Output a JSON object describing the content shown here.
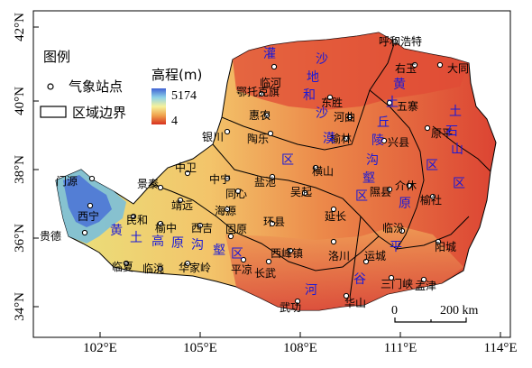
{
  "frame": {
    "x_ticks": [
      "102°E",
      "105°E",
      "108°E",
      "111°E",
      "114°E"
    ],
    "y_ticks": [
      "42°N",
      "40°N",
      "38°N",
      "36°N",
      "34°N"
    ]
  },
  "legend": {
    "title": "图例",
    "station_label": "气象站点",
    "boundary_label": "区域边界",
    "elevation_title": "高程(m)",
    "elevation_max": "5174",
    "elevation_min": "4",
    "colors": [
      "#4a6fd6",
      "#f7f39a",
      "#f1a84f",
      "#d7301f"
    ]
  },
  "scale_bar": {
    "zero": "0",
    "label": "200 km"
  },
  "stations": [
    "呼和浩特",
    "右玉",
    "大同",
    "临河",
    "东胜",
    "五寨",
    "鄂托克旗",
    "惠农",
    "河曲",
    "原平",
    "银川",
    "陶乐",
    "榆林",
    "兴县",
    "中卫",
    "盐池",
    "横山",
    "门源",
    "景泰",
    "中宁",
    "同心",
    "吴起",
    "隰县",
    "介休",
    "榆社",
    "西宁",
    "民和",
    "靖远",
    "海源",
    "延长",
    "贵德",
    "榆中",
    "西吉",
    "固原",
    "环县",
    "临汾",
    "临夏",
    "临洮",
    "华家岭",
    "平凉",
    "西峰镇",
    "洛川",
    "运城",
    "阳城",
    "长武",
    "三门峡",
    "孟津",
    "华山",
    "武功"
  ],
  "regions": [
    {
      "name": "灌沙地和沙漠区",
      "chars": [
        "灌",
        "沙",
        "地",
        "和",
        "沙",
        "漠",
        "区"
      ]
    },
    {
      "name": "黄土丘陵沟壑区",
      "chars": [
        "黄",
        "土",
        "丘",
        "陵",
        "沟",
        "壑",
        "区"
      ]
    },
    {
      "name": "黄土高原沟壑区",
      "chars": [
        "黄",
        "土",
        "高",
        "原",
        "沟",
        "壑",
        "区"
      ]
    },
    {
      "name": "河谷平原区",
      "chars": [
        "河",
        "谷",
        "平",
        "原",
        "区"
      ]
    },
    {
      "name": "土石山区",
      "chars": [
        "土",
        "石",
        "山",
        "区"
      ]
    }
  ]
}
